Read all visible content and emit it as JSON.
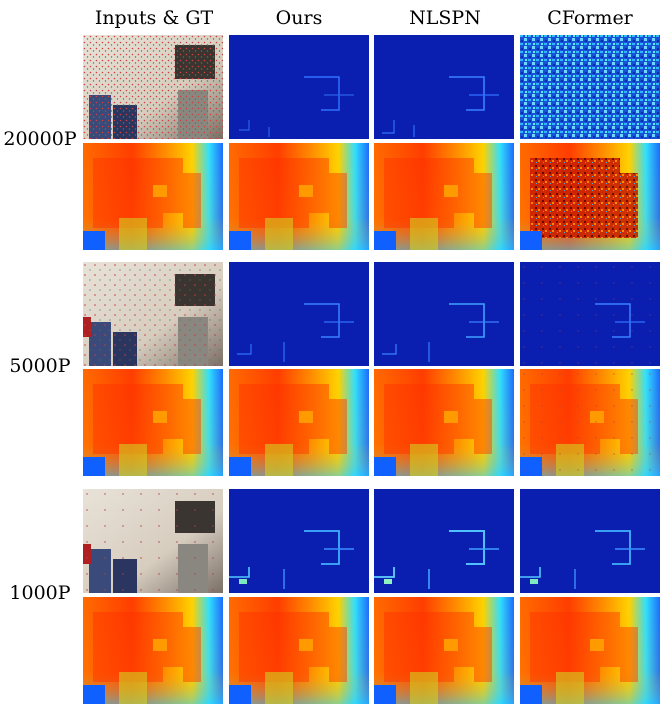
{
  "figure": {
    "column_headers": [
      "Inputs & GT",
      "Ours",
      "NLSPN",
      "CFormer"
    ],
    "rows": [
      {
        "label": "20000P",
        "panels": [
          "input-rgb-sparse",
          "error-map",
          "error-map",
          "error-map-high"
        ]
      },
      {
        "label": "5000P",
        "panels": [
          "input-rgb-sparse",
          "error-map",
          "error-map",
          "error-map"
        ]
      },
      {
        "label": "1000P",
        "panels": [
          "input-rgb-sparse",
          "error-map",
          "error-map",
          "error-map"
        ]
      }
    ],
    "depth_row": [
      "gt-depth",
      "pred-depth",
      "pred-depth",
      "pred-depth"
    ]
  }
}
